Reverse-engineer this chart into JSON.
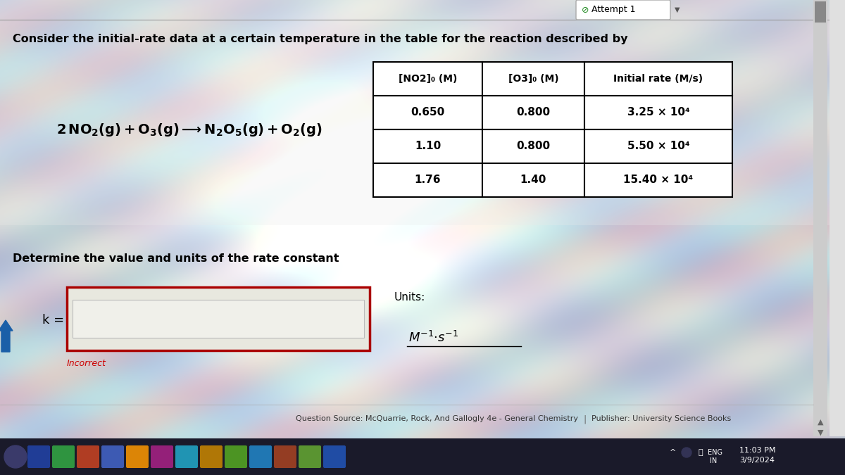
{
  "bg_color_top": "#c8cdd8",
  "bg_color_main": "#d0d5de",
  "white_area_color": "#f0eff0",
  "title_text": "Consider the initial-rate data at a certain temperature in the table for the reaction described by",
  "table_headers": [
    "[NO2]₀ (M)",
    "[O3]₀ (M)",
    "Initial rate (M/s)"
  ],
  "table_data": [
    [
      "0.650",
      "0.800",
      "3.25 × 10⁴"
    ],
    [
      "1.10",
      "0.800",
      "5.50 × 10⁴"
    ],
    [
      "1.76",
      "1.40",
      "15.40 × 10⁴"
    ]
  ],
  "determine_text": "Determine the value and units of the rate constant",
  "k_label": "k =",
  "units_label": "Units:",
  "incorrect_text": "Incorrect",
  "attempt_text": "Attempt 1",
  "footer_text": "Question Source: McQuarrie, Rock, And Gallogly 4e - General Chemistry",
  "footer_text2": "Publisher: University Science Books",
  "time_text": "11:03 PM",
  "date_text": "3/9/2024",
  "taskbar_color": "#1a1a2e",
  "scrollbar_color": "#888888",
  "units_math": "M^{-1}{\\cdot}s^{-1}"
}
